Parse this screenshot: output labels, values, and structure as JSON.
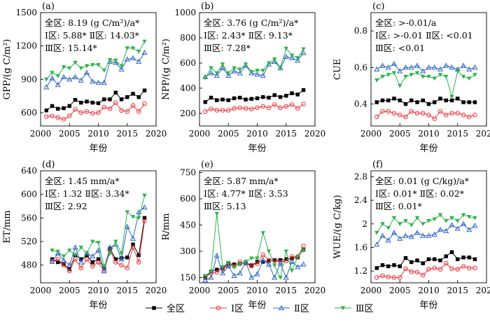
{
  "figure": {
    "legend": [
      {
        "name": "全区",
        "color": "#000000",
        "marker": "square"
      },
      {
        "name": "Ⅰ区",
        "color": "#e8373c",
        "marker": "circle"
      },
      {
        "name": "Ⅱ区",
        "color": "#2f66c4",
        "marker": "triangle-up"
      },
      {
        "name": "Ⅲ区",
        "color": "#2db34a",
        "marker": "triangle-down"
      }
    ]
  },
  "chart_data": [
    {
      "type": "line",
      "panel": "(a)",
      "xlabel": "年份",
      "ylabel": "GPP/(g C/m²)",
      "xlim": [
        2000,
        2020
      ],
      "ylim": [
        480,
        1500
      ],
      "xticks": [
        2000,
        2005,
        2010,
        2015,
        2020
      ],
      "yticks": [
        600,
        900,
        1200,
        1500
      ],
      "annotations": [
        "全区: 8.19 (g C/m²)/a*",
        "Ⅰ区: 5.88* Ⅱ区: 14.03*",
        "Ⅲ区: 15.14*"
      ],
      "x": [
        2001,
        2002,
        2003,
        2004,
        2005,
        2006,
        2007,
        2008,
        2009,
        2010,
        2011,
        2012,
        2013,
        2014,
        2015,
        2016,
        2017,
        2018
      ],
      "series": [
        {
          "name": "全区",
          "values": [
            620,
            660,
            635,
            640,
            660,
            715,
            690,
            700,
            690,
            685,
            720,
            720,
            780,
            720,
            740,
            770,
            740,
            800
          ]
        },
        {
          "name": "Ⅰ区",
          "values": [
            565,
            570,
            555,
            540,
            570,
            630,
            600,
            610,
            595,
            600,
            650,
            635,
            690,
            620,
            610,
            665,
            610,
            680
          ]
        },
        {
          "name": "Ⅱ区",
          "values": [
            830,
            910,
            850,
            920,
            900,
            920,
            890,
            960,
            880,
            870,
            870,
            1060,
            1050,
            990,
            1080,
            1090,
            1060,
            1140
          ]
        },
        {
          "name": "Ⅲ区",
          "values": [
            900,
            960,
            930,
            1010,
            1000,
            1050,
            1000,
            1020,
            1030,
            1030,
            980,
            1075,
            1070,
            1020,
            1180,
            1180,
            1150,
            1240
          ]
        }
      ]
    },
    {
      "type": "line",
      "panel": "(b)",
      "xlabel": "年份",
      "ylabel": "NPP/(g C/m²)",
      "xlim": [
        2000,
        2020
      ],
      "ylim": [
        100,
        1000
      ],
      "xticks": [
        2000,
        2005,
        2010,
        2015,
        2020
      ],
      "yticks": [
        200,
        400,
        600,
        800,
        1000
      ],
      "annotations": [
        "全区: 3.76 (g C/m²)/a*",
        "Ⅰ区: 2.43* Ⅱ区: 9.13*",
        "Ⅲ区: 7.28*"
      ],
      "x": [
        2001,
        2002,
        2003,
        2004,
        2005,
        2006,
        2007,
        2008,
        2009,
        2010,
        2011,
        2012,
        2013,
        2014,
        2015,
        2016,
        2017,
        2018
      ],
      "series": [
        {
          "name": "全区",
          "values": [
            290,
            325,
            305,
            310,
            305,
            320,
            325,
            310,
            315,
            320,
            330,
            325,
            345,
            330,
            340,
            360,
            350,
            385
          ]
        },
        {
          "name": "Ⅰ区",
          "values": [
            215,
            235,
            225,
            225,
            225,
            240,
            245,
            240,
            235,
            245,
            255,
            245,
            270,
            245,
            255,
            270,
            240,
            275
          ]
        },
        {
          "name": "Ⅱ区",
          "values": [
            490,
            520,
            500,
            560,
            500,
            535,
            520,
            580,
            520,
            510,
            500,
            590,
            610,
            560,
            650,
            640,
            620,
            680
          ]
        },
        {
          "name": "Ⅲ区",
          "values": [
            480,
            560,
            520,
            590,
            520,
            560,
            550,
            590,
            530,
            540,
            540,
            600,
            630,
            560,
            715,
            660,
            640,
            710
          ]
        }
      ]
    },
    {
      "type": "line",
      "panel": "(c)",
      "xlabel": "年份",
      "ylabel": "CUE",
      "xlim": [
        2000,
        2020
      ],
      "ylim": [
        0.28,
        0.9
      ],
      "xticks": [
        2000,
        2005,
        2010,
        2015,
        2020
      ],
      "yticks": [
        0.4,
        0.6,
        0.8
      ],
      "annotations": [
        "全区: >-0.01/a",
        "Ⅰ区: >-0.01 Ⅱ区: <0.01",
        "Ⅲ区: <0.01"
      ],
      "x": [
        2001,
        2002,
        2003,
        2004,
        2005,
        2006,
        2007,
        2008,
        2009,
        2010,
        2011,
        2012,
        2013,
        2014,
        2015,
        2016,
        2017,
        2018
      ],
      "series": [
        {
          "name": "全区",
          "values": [
            0.41,
            0.42,
            0.42,
            0.43,
            0.42,
            0.4,
            0.42,
            0.41,
            0.42,
            0.4,
            0.41,
            0.43,
            0.42,
            0.42,
            0.43,
            0.41,
            0.41,
            0.41
          ]
        },
        {
          "name": "Ⅰ区",
          "values": [
            0.33,
            0.36,
            0.36,
            0.35,
            0.34,
            0.33,
            0.36,
            0.35,
            0.35,
            0.34,
            0.32,
            0.36,
            0.34,
            0.35,
            0.35,
            0.34,
            0.33,
            0.34
          ]
        },
        {
          "name": "Ⅱ区",
          "values": [
            0.59,
            0.61,
            0.6,
            0.62,
            0.58,
            0.6,
            0.6,
            0.61,
            0.58,
            0.6,
            0.6,
            0.59,
            0.61,
            0.6,
            0.59,
            0.61,
            0.59,
            0.6
          ]
        },
        {
          "name": "Ⅲ区",
          "values": [
            0.53,
            0.55,
            0.56,
            0.57,
            0.5,
            0.55,
            0.56,
            0.57,
            0.55,
            0.55,
            0.54,
            0.56,
            0.55,
            0.44,
            0.58,
            0.55,
            0.54,
            0.56
          ]
        }
      ]
    },
    {
      "type": "line",
      "panel": "(d)",
      "xlabel": "年份",
      "ylabel": "ET/mm",
      "xlim": [
        2000,
        2020
      ],
      "ylim": [
        450,
        640
      ],
      "xticks": [
        2000,
        2005,
        2010,
        2015,
        2020
      ],
      "yticks": [
        480,
        520,
        560,
        600,
        640
      ],
      "annotations": [
        "全区: 1.45 mm/a*",
        "Ⅰ区: 1.32 Ⅱ区: 3.34*",
        "Ⅲ区: 2.92"
      ],
      "x": [
        2002,
        2003,
        2004,
        2005,
        2006,
        2007,
        2008,
        2009,
        2010,
        2011,
        2012,
        2013,
        2014,
        2015,
        2016,
        2017,
        2018
      ],
      "series": [
        {
          "name": "全区",
          "values": [
            490,
            485,
            482,
            473,
            497,
            490,
            496,
            485,
            490,
            475,
            508,
            490,
            492,
            493,
            515,
            497,
            560
          ]
        },
        {
          "name": "Ⅰ区",
          "values": [
            487,
            490,
            480,
            470,
            490,
            475,
            490,
            478,
            485,
            470,
            505,
            485,
            480,
            475,
            510,
            485,
            555
          ]
        },
        {
          "name": "Ⅱ区",
          "values": [
            486,
            500,
            488,
            480,
            510,
            485,
            500,
            495,
            505,
            470,
            510,
            515,
            490,
            545,
            525,
            570,
            578
          ]
        },
        {
          "name": "Ⅲ区",
          "values": [
            505,
            503,
            495,
            505,
            497,
            510,
            500,
            520,
            518,
            478,
            500,
            520,
            500,
            570,
            562,
            560,
            598
          ]
        }
      ]
    },
    {
      "type": "line",
      "panel": "(e)",
      "xlabel": "年份",
      "ylabel": "R/mm",
      "xlim": [
        2000,
        2020
      ],
      "ylim": [
        120,
        760
      ],
      "xticks": [
        2000,
        2005,
        2010,
        2015,
        2020
      ],
      "yticks": [
        150,
        300,
        450,
        600,
        750
      ],
      "annotations": [
        "全区: 5.87 mm/a*",
        "Ⅰ区: 4.77* Ⅱ区: 3.53",
        "Ⅲ区: 5.13"
      ],
      "x": [
        2001,
        2002,
        2003,
        2004,
        2005,
        2006,
        2007,
        2008,
        2009,
        2010,
        2011,
        2012,
        2013,
        2014,
        2015,
        2016,
        2017,
        2018
      ],
      "series": [
        {
          "name": "全区",
          "values": [
            150,
            185,
            195,
            205,
            230,
            225,
            230,
            235,
            220,
            240,
            240,
            245,
            250,
            250,
            255,
            260,
            265,
            310
          ]
        },
        {
          "name": "Ⅰ区",
          "values": [
            155,
            175,
            180,
            200,
            220,
            215,
            240,
            230,
            215,
            230,
            280,
            250,
            245,
            240,
            245,
            270,
            270,
            330
          ]
        },
        {
          "name": "Ⅱ区",
          "values": [
            135,
            150,
            275,
            175,
            215,
            160,
            175,
            240,
            150,
            170,
            250,
            225,
            150,
            230,
            150,
            240,
            210,
            225
          ]
        },
        {
          "name": "Ⅲ区",
          "values": [
            160,
            185,
            515,
            210,
            235,
            210,
            225,
            240,
            260,
            260,
            405,
            300,
            220,
            150,
            300,
            190,
            270,
            305
          ]
        }
      ]
    },
    {
      "type": "line",
      "panel": "(f)",
      "xlabel": "年份",
      "ylabel": "WUE/(g C/kg)",
      "xlim": [
        2000,
        2020
      ],
      "ylim": [
        1.0,
        2.9
      ],
      "xticks": [
        2000,
        2005,
        2010,
        2015,
        2020
      ],
      "yticks": [
        1.2,
        1.6,
        2.0,
        2.4,
        2.8
      ],
      "annotations": [
        "全区: 0.01 (g C/kg)/a*",
        "Ⅰ区: 0.01* Ⅱ区: 0.02*",
        "Ⅲ区: 0.01*"
      ],
      "x": [
        2001,
        2002,
        2003,
        2004,
        2005,
        2006,
        2007,
        2008,
        2009,
        2010,
        2011,
        2012,
        2013,
        2014,
        2015,
        2016,
        2017,
        2018
      ],
      "series": [
        {
          "name": "全区",
          "values": [
            1.25,
            1.3,
            1.28,
            1.3,
            1.28,
            1.42,
            1.35,
            1.38,
            1.33,
            1.4,
            1.4,
            1.38,
            1.45,
            1.52,
            1.4,
            1.43,
            1.43,
            1.4
          ]
        },
        {
          "name": "Ⅰ区",
          "values": [
            1.09,
            1.12,
            1.1,
            1.09,
            1.09,
            1.24,
            1.19,
            1.18,
            1.13,
            1.23,
            1.25,
            1.23,
            1.33,
            1.24,
            1.23,
            1.28,
            1.25,
            1.25
          ]
        },
        {
          "name": "Ⅱ区",
          "values": [
            1.65,
            1.8,
            1.72,
            1.85,
            1.75,
            1.8,
            1.78,
            1.85,
            1.8,
            1.8,
            1.82,
            1.9,
            1.88,
            1.98,
            1.92,
            2.0,
            1.9,
            1.97
          ]
        },
        {
          "name": "Ⅲ区",
          "values": [
            1.85,
            2.0,
            1.93,
            2.1,
            2.0,
            2.05,
            1.98,
            2.1,
            2.0,
            2.05,
            2.08,
            2.15,
            2.05,
            2.1,
            2.05,
            2.15,
            2.12,
            2.1
          ]
        }
      ]
    }
  ]
}
